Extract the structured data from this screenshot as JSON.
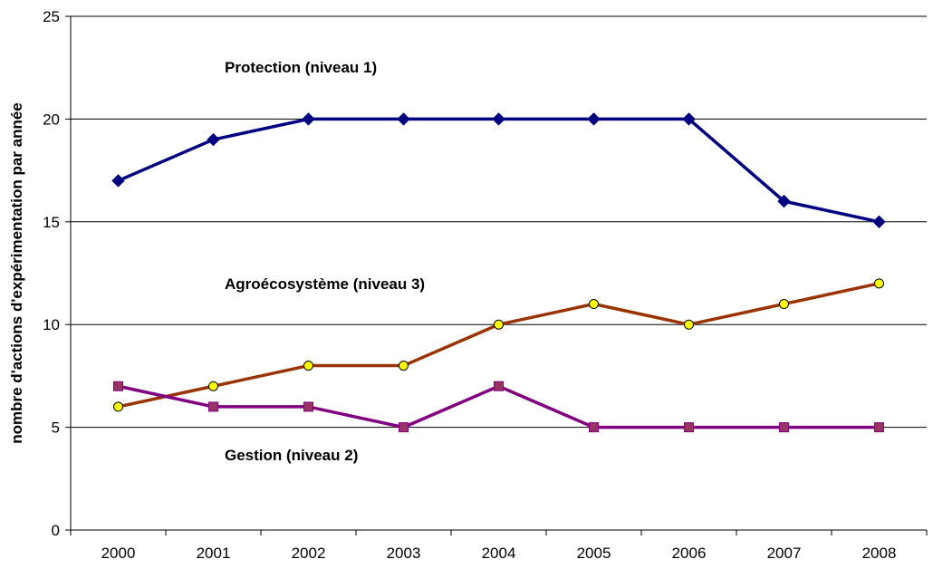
{
  "chart_data": {
    "type": "line",
    "title": "",
    "xlabel": "",
    "ylabel": "nombre d'actions d'expérimentation par année",
    "categories": [
      "2000",
      "2001",
      "2002",
      "2003",
      "2004",
      "2005",
      "2006",
      "2007",
      "2008"
    ],
    "ylim": [
      0,
      25
    ],
    "yticks": [
      "0",
      "5",
      "10",
      "15",
      "20",
      "25"
    ],
    "grid": "horizontal",
    "legend": "none",
    "series": [
      {
        "name": "Protection (niveau 1)",
        "values": [
          17,
          19,
          20,
          20,
          20,
          20,
          20,
          16,
          15
        ],
        "color": "#000080",
        "marker": "diamond"
      },
      {
        "name": "Agroécosystème (niveau 3)",
        "values": [
          6,
          7,
          8,
          8,
          10,
          11,
          10,
          11,
          12
        ],
        "color": "#993300",
        "marker": "circle",
        "marker_fill": "#ffff00"
      },
      {
        "name": "Gestion (niveau 2)",
        "values": [
          7,
          6,
          6,
          5,
          7,
          5,
          5,
          5,
          5
        ],
        "color": "#800080",
        "marker": "square",
        "marker_fill": "#993366"
      }
    ]
  }
}
